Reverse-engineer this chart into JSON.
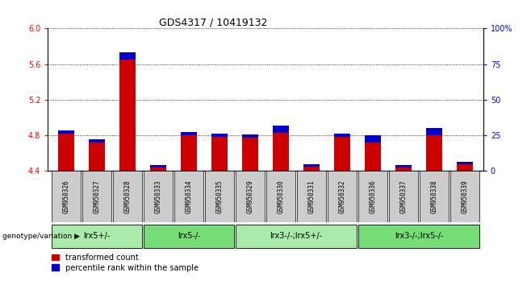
{
  "title": "GDS4317 / 10419132",
  "samples": [
    "GSM950326",
    "GSM950327",
    "GSM950328",
    "GSM950333",
    "GSM950334",
    "GSM950335",
    "GSM950329",
    "GSM950330",
    "GSM950331",
    "GSM950332",
    "GSM950336",
    "GSM950337",
    "GSM950338",
    "GSM950339"
  ],
  "red_values": [
    4.82,
    4.72,
    5.65,
    4.44,
    4.8,
    4.78,
    4.77,
    4.83,
    4.45,
    4.78,
    4.72,
    4.44,
    4.8,
    4.48
  ],
  "blue_heights_pct": [
    5,
    5,
    10,
    3,
    5,
    5,
    5,
    10,
    3,
    5,
    10,
    3,
    10,
    3
  ],
  "y_min": 4.4,
  "y_max": 6.0,
  "y_ticks": [
    4.4,
    4.8,
    5.2,
    5.6,
    6.0
  ],
  "y2_ticks": [
    0,
    25,
    50,
    75,
    100
  ],
  "groups": [
    {
      "label": "lrx5+/-",
      "start": 0,
      "end": 3,
      "color": "#aaeaaa"
    },
    {
      "label": "lrx5-/-",
      "start": 3,
      "end": 6,
      "color": "#77dd77"
    },
    {
      "label": "lrx3-/-;lrx5+/-",
      "start": 6,
      "end": 10,
      "color": "#aaeaaa"
    },
    {
      "label": "lrx3-/-;lrx5-/-",
      "start": 10,
      "end": 14,
      "color": "#77dd77"
    }
  ],
  "group_label": "genotype/variation",
  "legend_red": "transformed count",
  "legend_blue": "percentile rank within the sample",
  "bar_width": 0.55,
  "red_color": "#cc0000",
  "blue_color": "#0000cc"
}
